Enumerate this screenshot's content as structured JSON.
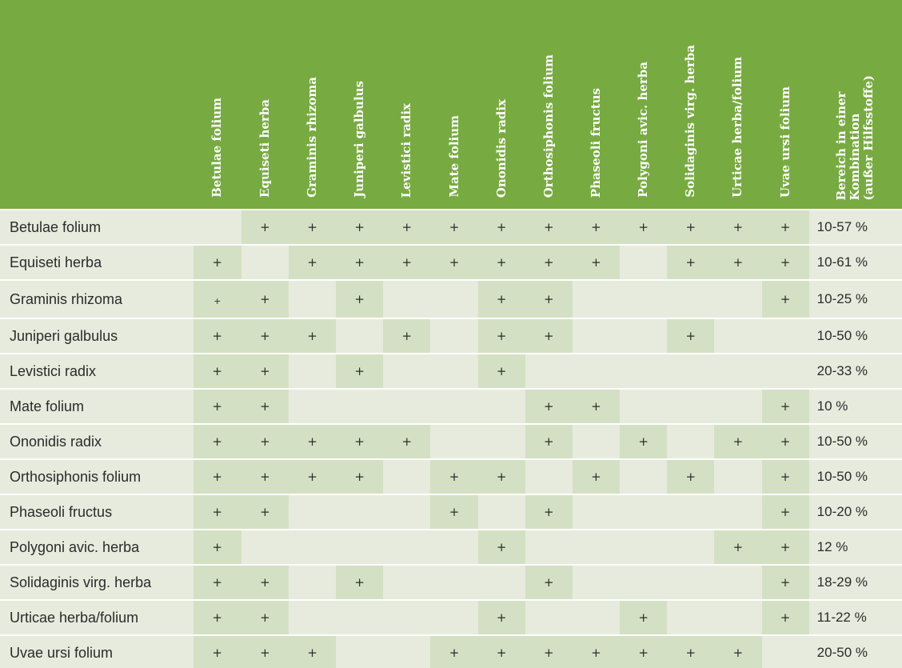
{
  "colors": {
    "header_green": "#78aa42",
    "row_bg": "#e6ebde",
    "plus_cell_bg": "#d4e0c3"
  },
  "columns": [
    "Betulae folium",
    "Equiseti herba",
    "Graminis rhizoma",
    "Juniperi galbulus",
    "Levistici radix",
    "Mate folium",
    "Ononidis radix",
    "Orthosiphonis folium",
    "Phaseoli fructus",
    "Polygoni avic. herba",
    "Solidaginis virg. herba",
    "Urticae herba/folium",
    "Uvae ursi folium"
  ],
  "range_header": "Bereich in einer\nKombination\n(außer Hilfsstoffe)",
  "plus_symbol": "+",
  "rows": [
    {
      "name": "Betulae folium",
      "marks": [
        0,
        1,
        1,
        1,
        1,
        1,
        1,
        1,
        1,
        1,
        1,
        1,
        1
      ],
      "range": "10-57 %"
    },
    {
      "name": "Equiseti herba",
      "marks": [
        1,
        0,
        1,
        1,
        1,
        1,
        1,
        1,
        1,
        0,
        1,
        1,
        1
      ],
      "range": "10-61 %"
    },
    {
      "name": "Graminis rhizoma",
      "marks": [
        1,
        1,
        0,
        1,
        0,
        0,
        1,
        1,
        0,
        0,
        0,
        0,
        1
      ],
      "range": "10-25 %"
    },
    {
      "name": "Juniperi galbulus",
      "marks": [
        1,
        1,
        1,
        0,
        1,
        0,
        1,
        1,
        0,
        0,
        1,
        0,
        0
      ],
      "range": "10-50 %"
    },
    {
      "name": "Levistici radix",
      "marks": [
        1,
        1,
        0,
        1,
        0,
        0,
        1,
        0,
        0,
        0,
        0,
        0,
        0
      ],
      "range": "20-33 %"
    },
    {
      "name": "Mate folium",
      "marks": [
        1,
        1,
        0,
        0,
        0,
        0,
        0,
        1,
        1,
        0,
        0,
        0,
        1
      ],
      "range": "10 %"
    },
    {
      "name": "Ononidis radix",
      "marks": [
        1,
        1,
        1,
        1,
        1,
        0,
        0,
        1,
        0,
        1,
        0,
        1,
        1
      ],
      "range": "10-50 %"
    },
    {
      "name": "Orthosiphonis folium",
      "marks": [
        1,
        1,
        1,
        1,
        0,
        1,
        1,
        0,
        1,
        0,
        1,
        0,
        1
      ],
      "range": "10-50 %"
    },
    {
      "name": "Phaseoli fructus",
      "marks": [
        1,
        1,
        0,
        0,
        0,
        1,
        0,
        1,
        0,
        0,
        0,
        0,
        1
      ],
      "range": "10-20 %"
    },
    {
      "name": "Polygoni avic. herba",
      "marks": [
        1,
        0,
        0,
        0,
        0,
        0,
        1,
        0,
        0,
        0,
        0,
        1,
        1
      ],
      "range": "12 %"
    },
    {
      "name": "Solidaginis virg. herba",
      "marks": [
        1,
        1,
        0,
        1,
        0,
        0,
        0,
        1,
        0,
        0,
        0,
        0,
        1
      ],
      "range": "18-29 %"
    },
    {
      "name": "Urticae herba/folium",
      "marks": [
        1,
        1,
        0,
        0,
        0,
        0,
        1,
        0,
        0,
        1,
        0,
        0,
        1
      ],
      "range": "11-22 %"
    },
    {
      "name": "Uvae ursi folium",
      "marks": [
        1,
        1,
        1,
        0,
        0,
        1,
        1,
        1,
        1,
        1,
        1,
        1,
        0
      ],
      "range": "20-50 %"
    }
  ]
}
